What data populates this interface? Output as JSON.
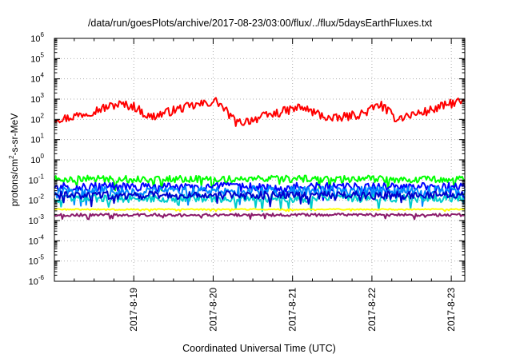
{
  "chart_data": {
    "type": "line",
    "title": "/data/run/goesPlots/archive/2017-08-23/03:00/flux/../flux/5daysEarthFluxes.txt",
    "xlabel": "Coordinated Universal Time (UTC)",
    "ylabel": {
      "prefix": "protons/cm",
      "superscript": "2",
      "suffix": "-s-sr-MeV"
    },
    "y_scale": "log",
    "ylim_exponents": [
      -6,
      6
    ],
    "y_tick_labels": [
      {
        "base": "10",
        "exp": "-6"
      },
      {
        "base": "10",
        "exp": "-5"
      },
      {
        "base": "10",
        "exp": "-4"
      },
      {
        "base": "10",
        "exp": "-3"
      },
      {
        "base": "10",
        "exp": "-2"
      },
      {
        "base": "10",
        "exp": "-1"
      },
      {
        "base": "10",
        "exp": "0"
      },
      {
        "base": "10",
        "exp": "1"
      },
      {
        "base": "10",
        "exp": "2"
      },
      {
        "base": "10",
        "exp": "3"
      },
      {
        "base": "10",
        "exp": "4"
      },
      {
        "base": "10",
        "exp": "5"
      },
      {
        "base": "10",
        "exp": "6"
      }
    ],
    "xlim_days": [
      18.0,
      23.17
    ],
    "x_ticks": [
      {
        "day": 19,
        "label": "2017-8-19"
      },
      {
        "day": 20,
        "label": "2017-8-20"
      },
      {
        "day": 21,
        "label": "2017-8-21"
      },
      {
        "day": 22,
        "label": "2017-8-22"
      },
      {
        "day": 23,
        "label": "2017-8-23"
      }
    ],
    "grid": true,
    "series": [
      {
        "color": "#ff0000",
        "base_log": 2.35,
        "noise": 0.22,
        "features": [
          [
            18.15,
            2.05
          ],
          [
            18.8,
            2.75
          ],
          [
            19.0,
            2.65
          ],
          [
            19.2,
            2.1
          ],
          [
            19.6,
            2.55
          ],
          [
            20.05,
            2.9
          ],
          [
            20.3,
            1.8
          ],
          [
            20.6,
            2.1
          ],
          [
            21.1,
            2.6
          ],
          [
            21.5,
            2.0
          ],
          [
            21.9,
            2.3
          ],
          [
            22.1,
            2.75
          ],
          [
            22.3,
            2.05
          ],
          [
            22.7,
            2.4
          ],
          [
            23.05,
            2.85
          ]
        ]
      },
      {
        "color": "#00ff00",
        "base_log": -0.95,
        "noise": 0.18,
        "features": []
      },
      {
        "color": "#0000ff",
        "base_log": -1.35,
        "noise": 0.22,
        "features": []
      },
      {
        "color": "#0088ff",
        "base_log": -1.55,
        "noise": 0.25,
        "features": []
      },
      {
        "color": "#00cccc",
        "base_log": -1.9,
        "noise": 0.2,
        "features": []
      },
      {
        "color": "#0000cc",
        "base_log": -1.75,
        "noise": 0.2,
        "features": []
      },
      {
        "color": "#ffff00",
        "base_log": -2.45,
        "noise": 0.03,
        "features": []
      },
      {
        "color": "#8b1a6b",
        "base_log": -2.72,
        "noise": 0.07,
        "features": []
      }
    ]
  }
}
